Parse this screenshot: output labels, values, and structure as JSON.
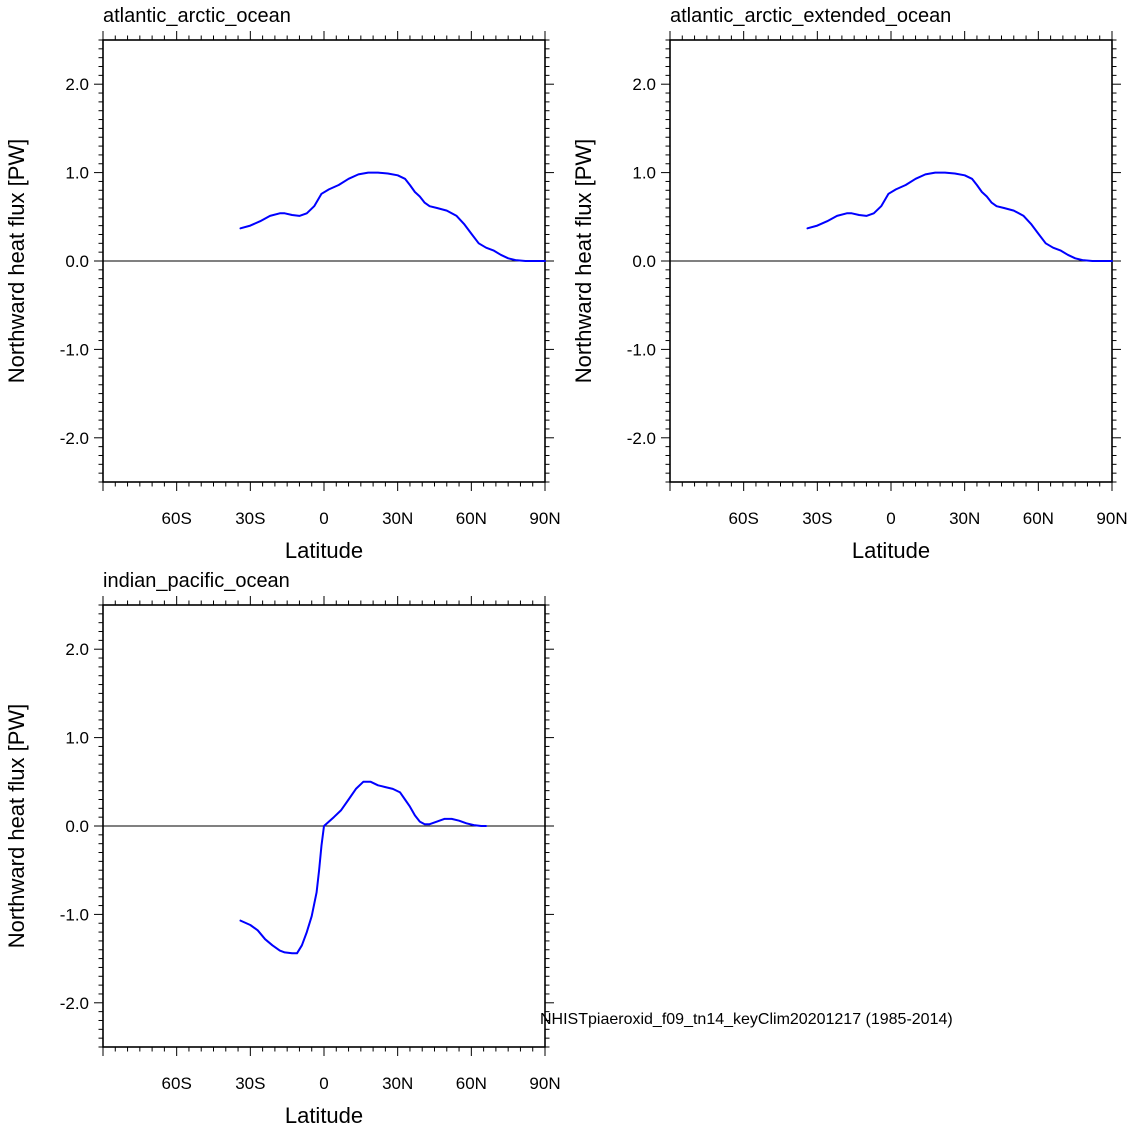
{
  "figure": {
    "legend_text": "NHISTpiaeroxid_f09_tn14_keyClim20201217 (1985-2014)",
    "legend_color": "#0000ff",
    "line_color": "#0000ff"
  },
  "chart_data": [
    {
      "type": "line",
      "title": "atlantic_arctic_ocean",
      "xlabel": "Latitude",
      "ylabel": "Northward heat flux [PW]",
      "xlim": [
        -90,
        90
      ],
      "ylim": [
        -2.5,
        2.5
      ],
      "xticks": [
        -60,
        -30,
        0,
        30,
        60,
        90
      ],
      "xtick_labels": [
        "60S",
        "30S",
        "0",
        "30N",
        "60N",
        "90N"
      ],
      "yticks": [
        2,
        1,
        0,
        -1,
        -2
      ],
      "ytick_labels": [
        "2.0",
        "1.0",
        "0.0",
        "-1.0",
        "-2.0"
      ],
      "zero_line": true,
      "series": [
        {
          "name": "NHISTpiaeroxid_f09_tn14_keyClim20201217 (1985-2014)",
          "x": [
            -34,
            -30,
            -26,
            -22,
            -18,
            -16,
            -13,
            -10,
            -7,
            -4,
            -1,
            2,
            6,
            10,
            14,
            18,
            22,
            26,
            30,
            33,
            35,
            37,
            39,
            41,
            43,
            46,
            50,
            54,
            57,
            60,
            63,
            66,
            69,
            72,
            75,
            78,
            82,
            86,
            90
          ],
          "y": [
            0.37,
            0.4,
            0.45,
            0.51,
            0.54,
            0.54,
            0.52,
            0.51,
            0.54,
            0.62,
            0.76,
            0.81,
            0.86,
            0.93,
            0.98,
            1.0,
            1.0,
            0.99,
            0.97,
            0.93,
            0.86,
            0.78,
            0.73,
            0.66,
            0.62,
            0.6,
            0.57,
            0.51,
            0.42,
            0.31,
            0.2,
            0.15,
            0.12,
            0.07,
            0.03,
            0.01,
            0.0,
            0.0,
            0.0
          ]
        }
      ]
    },
    {
      "type": "line",
      "title": "atlantic_arctic_extended_ocean",
      "xlabel": "Latitude",
      "ylabel": "Northward heat flux [PW]",
      "xlim": [
        -90,
        90
      ],
      "ylim": [
        -2.5,
        2.5
      ],
      "xticks": [
        -60,
        -30,
        0,
        30,
        60,
        90
      ],
      "xtick_labels": [
        "60S",
        "30S",
        "0",
        "30N",
        "60N",
        "90N"
      ],
      "yticks": [
        2,
        1,
        0,
        -1,
        -2
      ],
      "ytick_labels": [
        "2.0",
        "1.0",
        "0.0",
        "-1.0",
        "-2.0"
      ],
      "zero_line": true,
      "series": [
        {
          "name": "NHISTpiaeroxid_f09_tn14_keyClim20201217 (1985-2014)",
          "x": [
            -34,
            -30,
            -26,
            -22,
            -18,
            -16,
            -13,
            -10,
            -7,
            -4,
            -1,
            2,
            6,
            10,
            14,
            18,
            22,
            26,
            30,
            33,
            35,
            37,
            39,
            41,
            43,
            46,
            50,
            54,
            57,
            60,
            63,
            66,
            69,
            72,
            75,
            78,
            82,
            86,
            90
          ],
          "y": [
            0.37,
            0.4,
            0.45,
            0.51,
            0.54,
            0.54,
            0.52,
            0.51,
            0.54,
            0.62,
            0.76,
            0.81,
            0.86,
            0.93,
            0.98,
            1.0,
            1.0,
            0.99,
            0.97,
            0.93,
            0.86,
            0.78,
            0.73,
            0.66,
            0.62,
            0.6,
            0.57,
            0.51,
            0.42,
            0.31,
            0.2,
            0.15,
            0.12,
            0.07,
            0.03,
            0.01,
            0.0,
            0.0,
            0.0
          ]
        }
      ]
    },
    {
      "type": "line",
      "title": "indian_pacific_ocean",
      "xlabel": "Latitude",
      "ylabel": "Northward heat flux [PW]",
      "xlim": [
        -90,
        90
      ],
      "ylim": [
        -2.5,
        2.5
      ],
      "xticks": [
        -60,
        -30,
        0,
        30,
        60,
        90
      ],
      "xtick_labels": [
        "60S",
        "30S",
        "0",
        "30N",
        "60N",
        "90N"
      ],
      "yticks": [
        2,
        1,
        0,
        -1,
        -2
      ],
      "ytick_labels": [
        "2.0",
        "1.0",
        "0.0",
        "-1.0",
        "-2.0"
      ],
      "zero_line": true,
      "series": [
        {
          "name": "NHISTpiaeroxid_f09_tn14_keyClim20201217 (1985-2014)",
          "x": [
            -34,
            -30,
            -27,
            -24,
            -21,
            -18,
            -16,
            -13,
            -11,
            -9,
            -7,
            -5,
            -3,
            -2,
            -1,
            0,
            2,
            4,
            7,
            10,
            13,
            16,
            19,
            22,
            25,
            28,
            31,
            33,
            35,
            37,
            39,
            41,
            43,
            46,
            49,
            52,
            55,
            58,
            61,
            64,
            66
          ],
          "y": [
            -1.07,
            -1.12,
            -1.18,
            -1.28,
            -1.35,
            -1.41,
            -1.43,
            -1.44,
            -1.44,
            -1.35,
            -1.2,
            -1.02,
            -0.75,
            -0.5,
            -0.22,
            0.0,
            0.05,
            0.1,
            0.18,
            0.3,
            0.42,
            0.5,
            0.5,
            0.46,
            0.44,
            0.42,
            0.38,
            0.3,
            0.22,
            0.12,
            0.05,
            0.02,
            0.02,
            0.05,
            0.08,
            0.08,
            0.06,
            0.03,
            0.01,
            0.0,
            0.0
          ]
        }
      ]
    }
  ]
}
